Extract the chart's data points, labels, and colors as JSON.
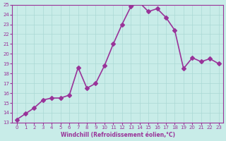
{
  "x": [
    0,
    1,
    2,
    3,
    4,
    5,
    6,
    7,
    8,
    9,
    10,
    11,
    12,
    13,
    14,
    15,
    16,
    17,
    18,
    19,
    20,
    21,
    22,
    23
  ],
  "y": [
    13.3,
    13.9,
    14.5,
    15.3,
    15.5,
    15.5,
    15.8,
    18.6,
    16.5,
    17.0,
    18.8,
    21.0,
    23.0,
    24.8,
    25.2,
    24.3,
    24.6,
    23.7,
    22.4,
    18.5,
    19.6,
    19.2,
    19.5,
    19.0
  ],
  "xlim": [
    -0.5,
    23.5
  ],
  "ylim": [
    13,
    25
  ],
  "xticks": [
    0,
    1,
    2,
    3,
    4,
    5,
    6,
    7,
    8,
    9,
    10,
    11,
    12,
    13,
    14,
    15,
    16,
    17,
    18,
    19,
    20,
    21,
    22,
    23
  ],
  "yticks": [
    13,
    14,
    15,
    16,
    17,
    18,
    19,
    20,
    21,
    22,
    23,
    24,
    25
  ],
  "xlabel": "Windchill (Refroidissement éolien,°C)",
  "line_color": "#993399",
  "marker": "D",
  "bg_color": "#c8ece8",
  "grid_color": "#aad8d4",
  "tick_label_color": "#993399",
  "axis_label_color": "#993399",
  "marker_size": 3,
  "line_width": 1.2
}
